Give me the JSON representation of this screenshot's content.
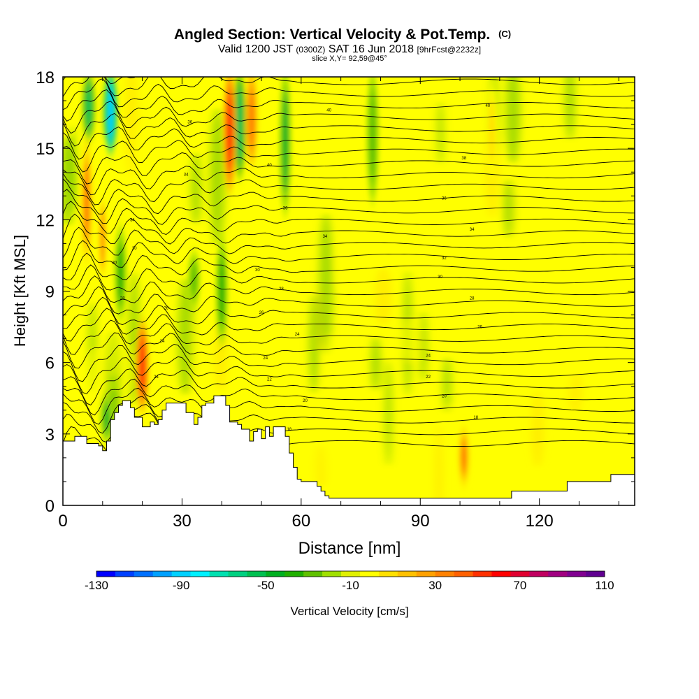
{
  "chart_data": {
    "type": "heatmap",
    "title": "Angled Section: Vertical Velocity & Pot.Temp.",
    "title_units": "(C)",
    "subtitle_prefix": "Valid 1200 JST",
    "subtitle_utc": "(0300Z)",
    "subtitle_date": "SAT 16 Jun 2018",
    "subtitle_fcst": "[9hrFcst@2232z]",
    "slice_label": "slice X,Y= 92,59@45°",
    "xlabel": "Distance [nm]",
    "ylabel": "Height [Kft MSL]",
    "xlim": [
      0,
      144
    ],
    "ylim": [
      0,
      18
    ],
    "x_ticks": [
      "0",
      "30",
      "60",
      "90",
      "120"
    ],
    "y_ticks": [
      "0",
      "3",
      "6",
      "9",
      "12",
      "15",
      "18"
    ],
    "colorbar": {
      "label": "Vertical Velocity [cm/s]",
      "min": -130,
      "max": 110,
      "step": 10,
      "tick_labels": [
        "-130",
        "-90",
        "-50",
        "-10",
        "30",
        "70",
        "110"
      ],
      "colors": [
        "#0000ff",
        "#0040ff",
        "#0070ff",
        "#00a0ff",
        "#00d0ff",
        "#00f0ff",
        "#00e0b0",
        "#00d080",
        "#00c050",
        "#00b020",
        "#20b000",
        "#60c000",
        "#a0e000",
        "#e0f000",
        "#ffff00",
        "#ffe000",
        "#ffc000",
        "#ffa000",
        "#ff8000",
        "#ff6000",
        "#ff3000",
        "#ff0000",
        "#e00030",
        "#c00060",
        "#a00080",
        "#800090",
        "#600090"
      ]
    },
    "terrain_kft": [
      [
        0,
        2.7
      ],
      [
        3,
        2.7
      ],
      [
        3,
        2.9
      ],
      [
        6,
        2.9
      ],
      [
        6,
        2.6
      ],
      [
        9,
        2.6
      ],
      [
        9,
        2.5
      ],
      [
        10,
        2.5
      ],
      [
        10,
        2.3
      ],
      [
        11,
        2.3
      ],
      [
        11,
        2.7
      ],
      [
        12,
        2.7
      ],
      [
        12,
        3.6
      ],
      [
        13,
        3.6
      ],
      [
        13,
        3.9
      ],
      [
        14,
        3.9
      ],
      [
        14,
        4.2
      ],
      [
        15,
        4.2
      ],
      [
        15,
        4.4
      ],
      [
        17,
        4.4
      ],
      [
        17,
        4.1
      ],
      [
        18,
        4.1
      ],
      [
        18,
        3.7
      ],
      [
        20,
        3.7
      ],
      [
        20,
        3.3
      ],
      [
        22,
        3.3
      ],
      [
        22,
        3.5
      ],
      [
        23,
        3.5
      ],
      [
        23,
        3.4
      ],
      [
        24,
        3.4
      ],
      [
        24,
        3.6
      ],
      [
        25,
        3.6
      ],
      [
        25,
        4.0
      ],
      [
        26,
        4.0
      ],
      [
        26,
        4.3
      ],
      [
        31,
        4.3
      ],
      [
        31,
        3.9
      ],
      [
        33,
        3.9
      ],
      [
        33,
        3.4
      ],
      [
        34,
        3.4
      ],
      [
        34,
        3.7
      ],
      [
        35,
        3.7
      ],
      [
        35,
        4.2
      ],
      [
        36,
        4.2
      ],
      [
        36,
        4.3
      ],
      [
        38,
        4.3
      ],
      [
        38,
        4.6
      ],
      [
        41,
        4.6
      ],
      [
        41,
        4.2
      ],
      [
        42,
        4.2
      ],
      [
        42,
        3.5
      ],
      [
        44,
        3.5
      ],
      [
        44,
        3.4
      ],
      [
        45,
        3.4
      ],
      [
        45,
        3.2
      ],
      [
        47,
        3.2
      ],
      [
        47,
        2.7
      ],
      [
        48,
        2.7
      ],
      [
        48,
        3.1
      ],
      [
        49,
        3.1
      ],
      [
        49,
        3.2
      ],
      [
        50,
        3.2
      ],
      [
        50,
        2.8
      ],
      [
        51,
        2.8
      ],
      [
        51,
        3.3
      ],
      [
        52,
        3.3
      ],
      [
        52,
        2.9
      ],
      [
        53,
        2.9
      ],
      [
        53,
        3.3
      ],
      [
        56,
        3.3
      ],
      [
        56,
        2.9
      ],
      [
        57,
        2.9
      ],
      [
        57,
        2.2
      ],
      [
        58,
        2.2
      ],
      [
        58,
        1.6
      ],
      [
        59,
        1.6
      ],
      [
        59,
        1.1
      ],
      [
        60,
        1.1
      ],
      [
        60,
        1.0
      ],
      [
        64,
        1.0
      ],
      [
        64,
        0.8
      ],
      [
        65,
        0.8
      ],
      [
        65,
        0.6
      ],
      [
        66,
        0.6
      ],
      [
        66,
        0.4
      ],
      [
        67,
        0.4
      ],
      [
        67,
        0.3
      ],
      [
        113,
        0.3
      ],
      [
        113,
        0.6
      ],
      [
        127,
        0.6
      ],
      [
        127,
        1.0
      ],
      [
        138,
        1.0
      ],
      [
        138,
        1.3
      ],
      [
        144,
        1.3
      ]
    ],
    "updrafts": [
      {
        "x": 6,
        "top": 15,
        "bottom": 10.5,
        "value": 50
      },
      {
        "x": 10,
        "top": 13,
        "bottom": 9.5,
        "value": 40
      },
      {
        "x": 20,
        "top": 7.5,
        "bottom": 4.2,
        "value": 70
      },
      {
        "x": 42,
        "top": 18,
        "bottom": 13.5,
        "value": 70
      },
      {
        "x": 47.5,
        "top": 18,
        "bottom": 14.5,
        "value": 55
      },
      {
        "x": 101,
        "top": 3.1,
        "bottom": 1.0,
        "value": 50
      },
      {
        "x": 108,
        "top": 17.5,
        "bottom": 14,
        "value": 25
      }
    ],
    "downdrafts": [
      {
        "x": 6.5,
        "top": 18,
        "bottom": 15.5,
        "value": -50
      },
      {
        "x": 12,
        "top": 18,
        "bottom": 15,
        "value": -90
      },
      {
        "x": 14.5,
        "top": 11.5,
        "bottom": 8,
        "value": -30
      },
      {
        "x": 11,
        "top": 4.5,
        "bottom": 2.8,
        "value": -40
      },
      {
        "x": 44.5,
        "top": 18,
        "bottom": 14,
        "value": -50
      },
      {
        "x": 40,
        "top": 11,
        "bottom": 7,
        "value": -30
      },
      {
        "x": 56,
        "top": 18,
        "bottom": 12.5,
        "value": -40
      },
      {
        "x": 33,
        "top": 10.5,
        "bottom": 8.5,
        "value": -20
      },
      {
        "x": 78,
        "top": 18,
        "bottom": 13,
        "value": -15
      }
    ],
    "isentrope_labels": [
      {
        "x": 32,
        "y": 16.1,
        "text": "36"
      },
      {
        "x": 67,
        "y": 16.6,
        "text": "40"
      },
      {
        "x": 107,
        "y": 16.8,
        "text": "40"
      },
      {
        "x": 31,
        "y": 13.9,
        "text": "34"
      },
      {
        "x": 52,
        "y": 14.3,
        "text": "40"
      },
      {
        "x": 101,
        "y": 14.6,
        "text": "38"
      },
      {
        "x": 56,
        "y": 12.5,
        "text": "36"
      },
      {
        "x": 96,
        "y": 12.9,
        "text": "36"
      },
      {
        "x": 17.5,
        "y": 12.0,
        "text": "34"
      },
      {
        "x": 66,
        "y": 11.3,
        "text": "34"
      },
      {
        "x": 103,
        "y": 11.6,
        "text": "34"
      },
      {
        "x": 18,
        "y": 10.8,
        "text": "30"
      },
      {
        "x": 96,
        "y": 10.4,
        "text": "32"
      },
      {
        "x": 13,
        "y": 10.2,
        "text": "30"
      },
      {
        "x": 49,
        "y": 9.9,
        "text": "30"
      },
      {
        "x": 95,
        "y": 9.6,
        "text": "30"
      },
      {
        "x": 15,
        "y": 8.7,
        "text": "28"
      },
      {
        "x": 55,
        "y": 9.1,
        "text": "28"
      },
      {
        "x": 103,
        "y": 8.7,
        "text": "28"
      },
      {
        "x": 26,
        "y": 8.3,
        "text": "26"
      },
      {
        "x": 50,
        "y": 8.1,
        "text": "26"
      },
      {
        "x": 105,
        "y": 7.5,
        "text": "26"
      },
      {
        "x": 25,
        "y": 6.9,
        "text": "24"
      },
      {
        "x": 59,
        "y": 7.2,
        "text": "24"
      },
      {
        "x": 51,
        "y": 6.2,
        "text": "24"
      },
      {
        "x": 92,
        "y": 6.3,
        "text": "24"
      },
      {
        "x": 23.5,
        "y": 5.4,
        "text": "24"
      },
      {
        "x": 52,
        "y": 5.3,
        "text": "22"
      },
      {
        "x": 92,
        "y": 5.4,
        "text": "22"
      },
      {
        "x": 61,
        "y": 4.4,
        "text": "20"
      },
      {
        "x": 96,
        "y": 4.6,
        "text": "20"
      },
      {
        "x": 104,
        "y": 3.7,
        "text": "18"
      },
      {
        "x": 57,
        "y": 3.2,
        "text": "18"
      }
    ]
  }
}
